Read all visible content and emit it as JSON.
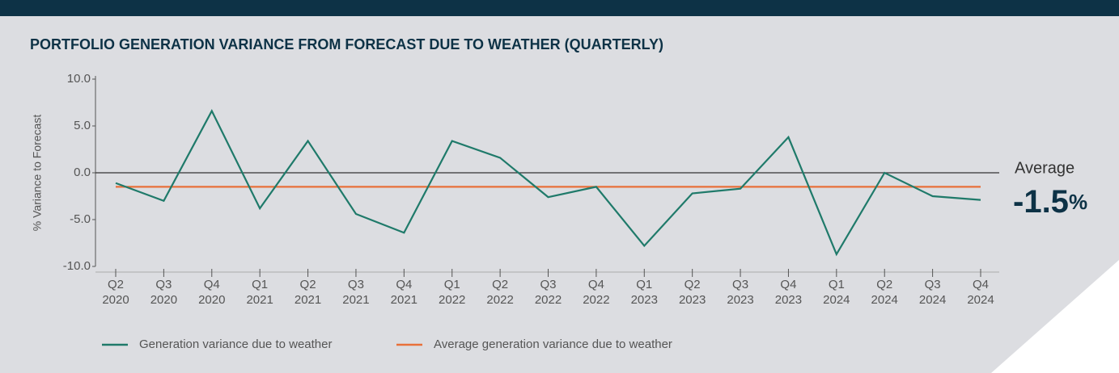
{
  "chart_data": {
    "type": "line",
    "title": "PORTFOLIO GENERATION VARIANCE FROM FORECAST DUE TO WEATHER (QUARTERLY)",
    "y_label": "% Variance to Forecast",
    "categories": [
      "Q2 2020",
      "Q3 2020",
      "Q4 2020",
      "Q1 2021",
      "Q2 2021",
      "Q3 2021",
      "Q4 2021",
      "Q1 2022",
      "Q2 2022",
      "Q3 2022",
      "Q4 2022",
      "Q1 2023",
      "Q2 2023",
      "Q3 2023",
      "Q4 2023",
      "Q1 2024",
      "Q2 2024",
      "Q3 2024",
      "Q4 2024"
    ],
    "series": [
      {
        "name": "Generation variance due to weather",
        "color": "#1f7a6a",
        "values": [
          -1.1,
          -3.0,
          6.6,
          -3.8,
          3.4,
          -4.4,
          -6.4,
          3.4,
          1.6,
          -2.6,
          -1.5,
          -7.8,
          -2.2,
          -1.7,
          3.8,
          -8.7,
          0.0,
          -2.5,
          -2.9
        ]
      },
      {
        "name": "Average generation variance due to weather",
        "color": "#e8703a",
        "values": [
          -1.5,
          -1.5,
          -1.5,
          -1.5,
          -1.5,
          -1.5,
          -1.5,
          -1.5,
          -1.5,
          -1.5,
          -1.5,
          -1.5,
          -1.5,
          -1.5,
          -1.5,
          -1.5,
          -1.5,
          -1.5,
          -1.5
        ]
      }
    ],
    "ylim": [
      -10,
      10
    ],
    "yticks": [
      {
        "value": -10,
        "label": "-10.0"
      },
      {
        "value": -5,
        "label": "-5.0"
      },
      {
        "value": 0,
        "label": "0.0"
      },
      {
        "value": 5,
        "label": "5.0"
      },
      {
        "value": 10,
        "label": "10.0"
      }
    ],
    "annotation": {
      "label": "Average",
      "value": -1.5,
      "unit": "%"
    }
  }
}
